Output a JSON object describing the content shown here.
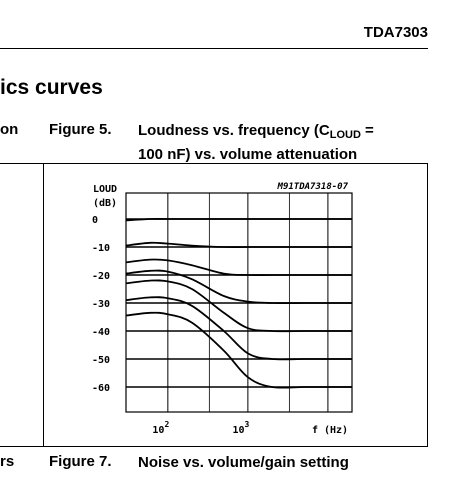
{
  "header": {
    "doc_code": "TDA7303"
  },
  "section": {
    "title_fragment": "ics curves"
  },
  "figure5": {
    "left_fragment": "on",
    "number": "Figure 5.",
    "title_part1": "Loudness vs. frequency (C",
    "title_subscript": "LOUD",
    "title_part2": " =",
    "title_line2": "100 nF) vs. volume attenuation"
  },
  "figure7": {
    "left_fragment": "rs",
    "number": "Figure 7.",
    "title": "Noise vs. volume/gain setting"
  },
  "chart_data": {
    "type": "line",
    "title": "",
    "code": "M91TDA7318-07",
    "ylabel": "LOUD (dB)",
    "ylabel_line1": "LOUD",
    "ylabel_line2": "(dB)",
    "xlabel": "f (Hz)",
    "x_scale": "log",
    "xlim": [
      30,
      20000
    ],
    "ylim": [
      -65,
      5
    ],
    "yticks": [
      "0",
      "-10",
      "-20",
      "-30",
      "-40",
      "-50",
      "-60"
    ],
    "yticks_values": [
      0,
      -10,
      -20,
      -30,
      -40,
      -50,
      -60
    ],
    "xticks": [
      {
        "value": 100,
        "base": "10",
        "exp": "2"
      },
      {
        "value": 1000,
        "base": "10",
        "exp": "3"
      }
    ],
    "grid": true,
    "series": [
      {
        "x": [
          30,
          60,
          100,
          200,
          500,
          1000,
          2000,
          5000,
          10000,
          20000
        ],
        "values": [
          -0.5,
          0,
          0,
          0,
          0,
          0,
          0,
          0,
          0,
          0
        ]
      },
      {
        "x": [
          30,
          60,
          100,
          200,
          500,
          1000,
          2000,
          5000,
          10000,
          20000
        ],
        "values": [
          -9.5,
          -8.5,
          -8.8,
          -9.5,
          -10,
          -10,
          -10,
          -10,
          -10,
          -10
        ]
      },
      {
        "x": [
          30,
          60,
          100,
          200,
          500,
          1000,
          2000,
          5000,
          10000,
          20000
        ],
        "values": [
          -15.5,
          -14.5,
          -14.8,
          -16.5,
          -19.5,
          -20,
          -20,
          -20,
          -20,
          -20
        ]
      },
      {
        "x": [
          30,
          60,
          100,
          200,
          500,
          1000,
          2000,
          5000,
          10000,
          20000
        ],
        "values": [
          -19.5,
          -18.5,
          -18.8,
          -21.5,
          -27.5,
          -29.5,
          -30,
          -30,
          -30,
          -30
        ]
      },
      {
        "x": [
          30,
          60,
          100,
          200,
          500,
          1000,
          2000,
          5000,
          10000,
          20000
        ],
        "values": [
          -23,
          -22,
          -22.3,
          -25,
          -33.5,
          -39,
          -40,
          -40,
          -40,
          -40
        ]
      },
      {
        "x": [
          30,
          60,
          100,
          200,
          500,
          1000,
          2000,
          5000,
          10000,
          20000
        ],
        "values": [
          -29,
          -28,
          -28.3,
          -31,
          -40,
          -48,
          -50,
          -50,
          -50,
          -50
        ]
      },
      {
        "x": [
          30,
          60,
          100,
          200,
          500,
          1000,
          2000,
          5000,
          10000,
          20000
        ],
        "values": [
          -34.5,
          -33.5,
          -34,
          -37,
          -47,
          -56.5,
          -60,
          -60,
          -60,
          -60
        ]
      }
    ]
  }
}
